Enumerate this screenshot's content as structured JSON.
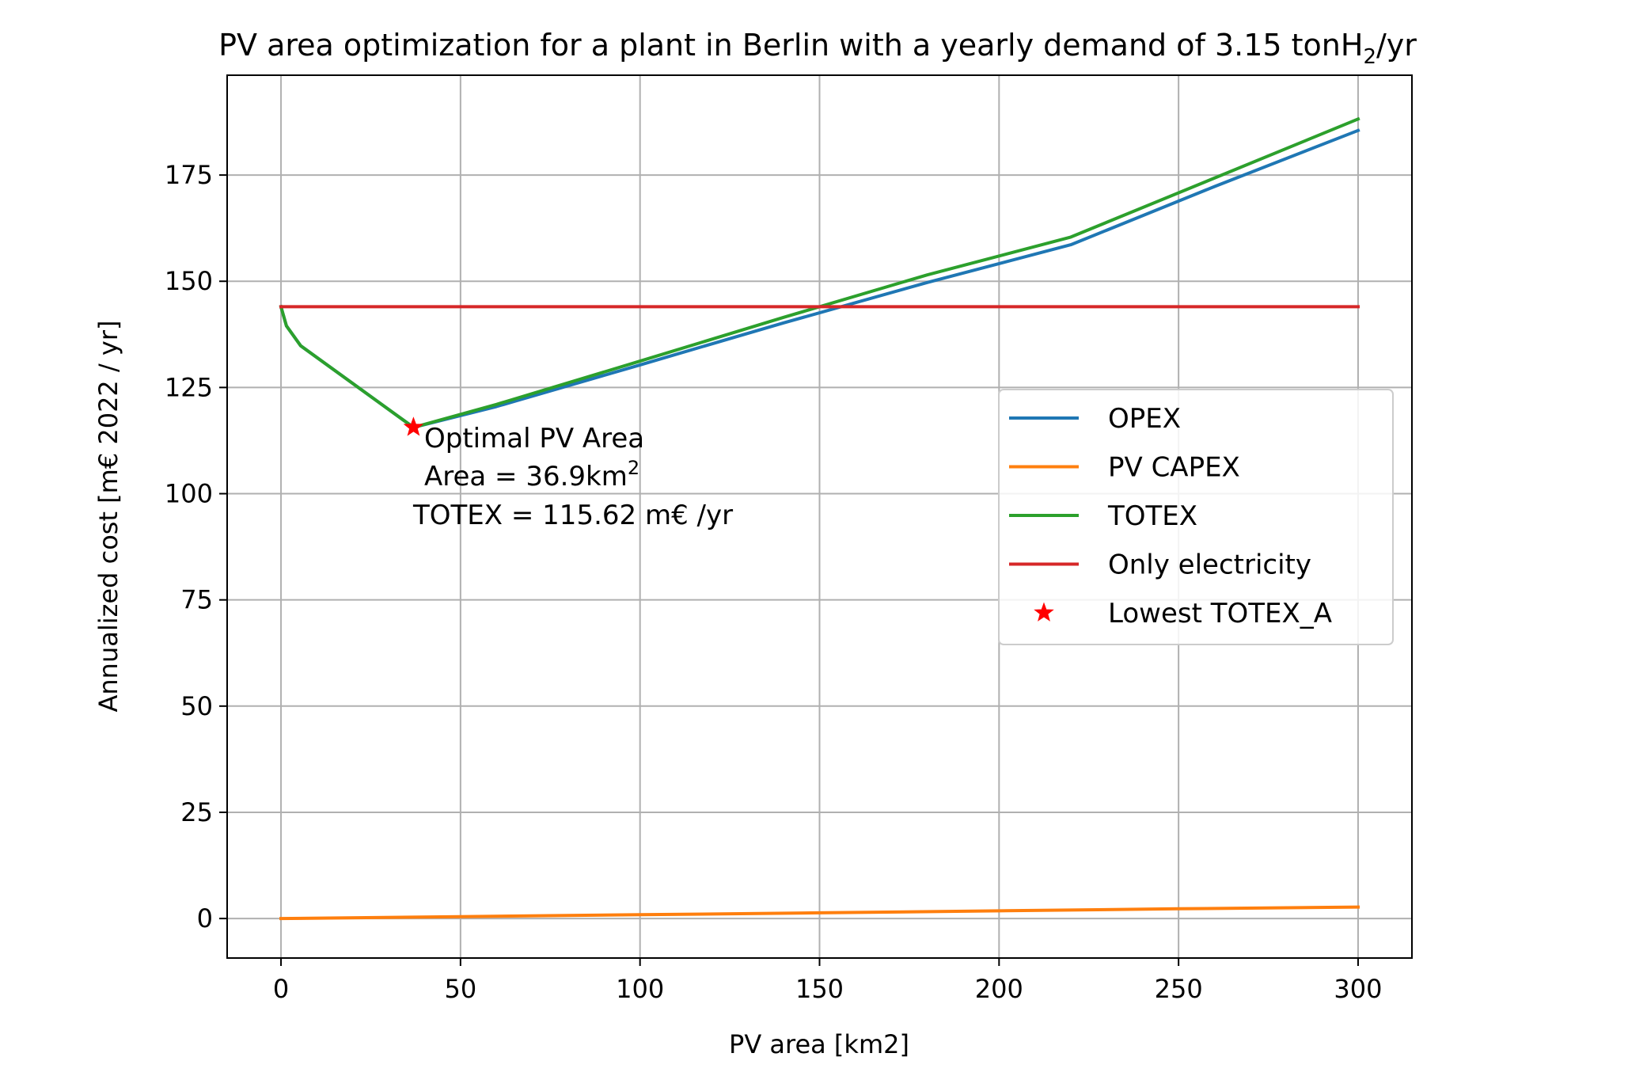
{
  "chart_data": {
    "type": "line",
    "title_parts": {
      "prefix": "PV area optimization for a plant in Berlin with a yearly demand of 3.15 tonH",
      "sub": "2",
      "suffix": "/yr"
    },
    "xlabel": "PV area [km2]",
    "ylabel": "Annualized cost [m€ 2022 / yr]",
    "xlim": [
      -15,
      315
    ],
    "ylim": [
      -9.3,
      198.5
    ],
    "xticks": [
      0,
      50,
      100,
      150,
      200,
      250,
      300
    ],
    "yticks": [
      0,
      25,
      50,
      75,
      100,
      125,
      150,
      175
    ],
    "grid": true,
    "legend_position": "center-right",
    "series": [
      {
        "name": "OPEX",
        "color": "#1f77b4",
        "points": [
          [
            0,
            144
          ],
          [
            1.5,
            139.5
          ],
          [
            5.5,
            134.8
          ],
          [
            36.9,
            115.6
          ],
          [
            60,
            120.5
          ],
          [
            100,
            130.3
          ],
          [
            140,
            140.2
          ],
          [
            180,
            149.7
          ],
          [
            220,
            158.6
          ],
          [
            260,
            172.3
          ],
          [
            300,
            185.5
          ]
        ]
      },
      {
        "name": "PV CAPEX",
        "color": "#ff7f0e",
        "points": [
          [
            0,
            0.0
          ],
          [
            50,
            0.45
          ],
          [
            100,
            0.9
          ],
          [
            150,
            1.35
          ],
          [
            200,
            1.8
          ],
          [
            250,
            2.3
          ],
          [
            300,
            2.7
          ]
        ]
      },
      {
        "name": "TOTEX",
        "color": "#2ca02c",
        "points": [
          [
            0,
            144
          ],
          [
            1.5,
            139.5
          ],
          [
            5.5,
            134.8
          ],
          [
            36.9,
            115.6
          ],
          [
            60,
            121.0
          ],
          [
            100,
            131.2
          ],
          [
            140,
            141.5
          ],
          [
            180,
            151.5
          ],
          [
            220,
            160.4
          ],
          [
            260,
            174.3
          ],
          [
            300,
            188.2
          ]
        ]
      },
      {
        "name": "Only electricity",
        "color": "#d62728",
        "points": [
          [
            0,
            144
          ],
          [
            300,
            144
          ]
        ]
      }
    ],
    "marker": {
      "name": "Lowest TOTEX_A",
      "color": "#ff0000",
      "symbol": "star",
      "x": 36.9,
      "y": 115.62
    },
    "annotation": {
      "line1": "Optimal PV Area",
      "line2_prefix": "Area = 36.9km",
      "line2_sup": "2",
      "line3": "TOTEX = 115.62 m€ /yr"
    }
  }
}
